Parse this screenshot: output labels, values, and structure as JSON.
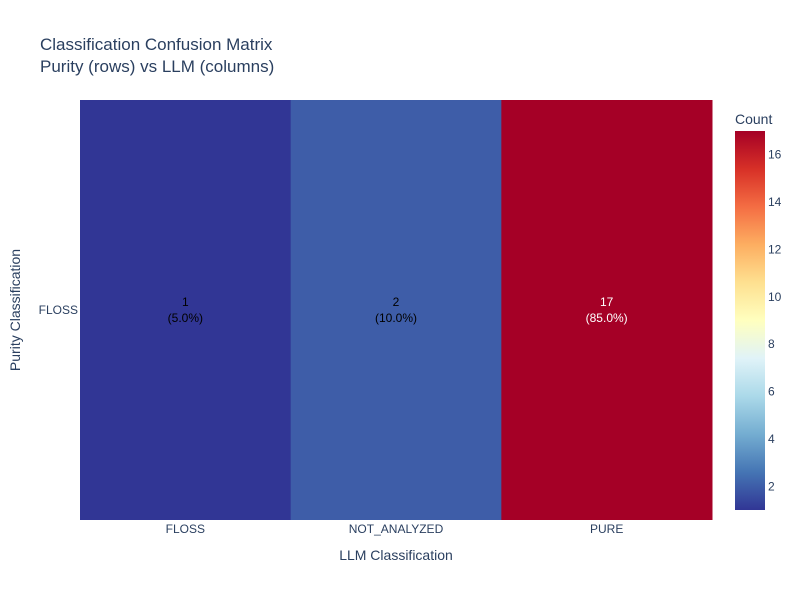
{
  "chart_data": {
    "type": "heatmap",
    "title": "Classification Confusion Matrix",
    "subtitle": "Purity (rows) vs LLM (columns)",
    "xlabel": "LLM Classification",
    "ylabel": "Purity Classification",
    "x_categories": [
      "FLOSS",
      "NOT_ANALYZED",
      "PURE"
    ],
    "y_categories": [
      "FLOSS"
    ],
    "z": [
      [
        1,
        2,
        17
      ]
    ],
    "cell_text": [
      [
        {
          "count": "1",
          "pct": "(5.0%)"
        },
        {
          "count": "2",
          "pct": "(10.0%)"
        },
        {
          "count": "17",
          "pct": "(85.0%)"
        }
      ]
    ],
    "colorscale": "RdYlBu (reversed)",
    "colorscale_stops": [
      "#313695",
      "#4575b4",
      "#74add1",
      "#abd9e9",
      "#e0f3f8",
      "#ffffbf",
      "#fee090",
      "#fdae61",
      "#f46d43",
      "#d73027",
      "#a50026"
    ],
    "zmin": 1,
    "zmax": 17,
    "colorbar": {
      "title": "Count",
      "ticks": [
        2,
        4,
        6,
        8,
        10,
        12,
        14,
        16
      ]
    }
  }
}
